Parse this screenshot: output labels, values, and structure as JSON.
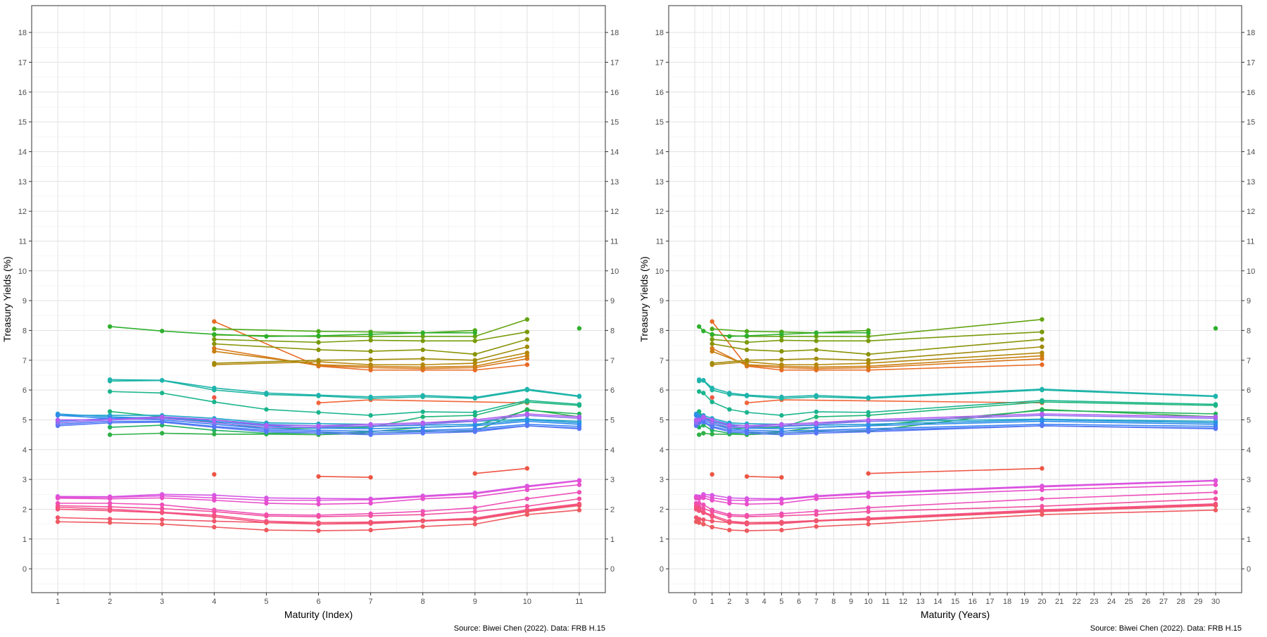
{
  "chart_data": [
    {
      "type": "line",
      "title": "",
      "xlabel": "Maturity (Index)",
      "ylabel": "Treasury Yields (%)",
      "caption": "Source: Biwei Chen (2022). Data: FRB H.15",
      "xlim": [
        0.5,
        11.5
      ],
      "ylim": [
        -0.8,
        18.9
      ],
      "x_ticks": [
        1,
        2,
        3,
        4,
        5,
        6,
        7,
        8,
        9,
        10,
        11
      ],
      "y_ticks": [
        0,
        1,
        2,
        3,
        4,
        5,
        6,
        7,
        8,
        9,
        10,
        11,
        12,
        13,
        14,
        15,
        16,
        17,
        18
      ],
      "grid": true,
      "legend": "none",
      "series": [
        {
          "color": "#EE5544",
          "x": [
            4
          ],
          "y": [
            5.75
          ]
        },
        {
          "color": "#F1663A",
          "x": [
            6,
            7,
            10
          ],
          "y": [
            5.57,
            5.67,
            5.57
          ]
        },
        {
          "color": "#EE5544",
          "x": [
            4
          ],
          "y": [
            3.17
          ]
        },
        {
          "color": "#EE5544",
          "x": [
            6,
            7
          ],
          "y": [
            3.1,
            3.07
          ]
        },
        {
          "color": "#EE5544",
          "x": [
            9,
            10
          ],
          "y": [
            3.2,
            3.37
          ]
        },
        {
          "color": "#E86A24",
          "x": [
            4,
            6,
            7,
            8,
            9,
            10
          ],
          "y": [
            8.3,
            6.8,
            6.67,
            6.67,
            6.67,
            6.85
          ]
        },
        {
          "color": "#D9771A",
          "x": [
            4,
            6,
            7,
            8,
            9,
            10
          ],
          "y": [
            7.4,
            6.82,
            6.75,
            6.72,
            6.75,
            7.05
          ]
        },
        {
          "color": "#C97F10",
          "x": [
            4,
            6,
            7,
            8,
            9,
            10
          ],
          "y": [
            7.3,
            6.85,
            6.8,
            6.77,
            6.8,
            7.15
          ]
        },
        {
          "color": "#B5870A",
          "x": [
            4,
            6,
            7,
            8,
            9,
            10
          ],
          "y": [
            6.85,
            6.95,
            6.85,
            6.85,
            6.9,
            7.25
          ]
        },
        {
          "color": "#A08B08",
          "x": [
            4,
            6,
            7,
            8,
            9,
            10
          ],
          "y": [
            6.9,
            7.0,
            7.02,
            7.05,
            7.0,
            7.45
          ]
        },
        {
          "color": "#8A9408",
          "x": [
            4,
            6,
            7,
            8,
            9,
            10
          ],
          "y": [
            7.55,
            7.35,
            7.3,
            7.35,
            7.2,
            7.7
          ]
        },
        {
          "color": "#7A9A0A",
          "x": [
            4,
            6,
            7,
            8,
            9,
            10
          ],
          "y": [
            7.7,
            7.6,
            7.67,
            7.65,
            7.65,
            7.95
          ]
        },
        {
          "color": "#65A312",
          "x": [
            4,
            6,
            7,
            8,
            9,
            10
          ],
          "y": [
            7.85,
            7.8,
            7.8,
            7.8,
            7.8,
            8.37
          ]
        },
        {
          "color": "#4BAA18",
          "x": [
            4,
            6,
            7,
            8,
            9
          ],
          "y": [
            8.05,
            7.97,
            7.95,
            7.92,
            8.0
          ]
        },
        {
          "color": "#2EB02C",
          "x": [
            2,
            3,
            4,
            5,
            6,
            7,
            8,
            9
          ],
          "y": [
            8.13,
            7.98,
            7.87,
            7.8,
            7.82,
            7.87,
            7.92,
            7.92
          ]
        },
        {
          "color": "#2EB02C",
          "x": [
            11
          ],
          "y": [
            8.07
          ]
        },
        {
          "color": "#2EB146",
          "x": [
            2,
            3,
            4,
            5,
            6,
            7,
            8,
            9,
            10,
            11
          ],
          "y": [
            4.5,
            4.55,
            4.52,
            4.52,
            4.5,
            4.55,
            4.62,
            4.62,
            5.35,
            5.1
          ]
        },
        {
          "color": "#22B25E",
          "x": [
            2,
            3,
            4,
            5,
            6,
            7,
            8,
            9,
            10,
            11
          ],
          "y": [
            4.75,
            4.82,
            4.65,
            4.55,
            4.55,
            4.6,
            4.75,
            4.8,
            5.32,
            5.2
          ]
        },
        {
          "color": "#1DB678",
          "x": [
            2,
            3,
            4,
            5,
            6,
            7,
            8,
            9,
            10,
            11
          ],
          "y": [
            5.28,
            5.1,
            4.92,
            4.7,
            4.72,
            4.75,
            5.1,
            5.15,
            5.6,
            5.48
          ]
        },
        {
          "color": "#1AB58D",
          "x": [
            2,
            3,
            4,
            5,
            6,
            7,
            8,
            9,
            10,
            11
          ],
          "y": [
            5.95,
            5.9,
            5.6,
            5.35,
            5.25,
            5.15,
            5.27,
            5.25,
            5.65,
            5.52
          ]
        },
        {
          "color": "#1CB6A0",
          "x": [
            2,
            3,
            4,
            5,
            6,
            7,
            8,
            9,
            10,
            11
          ],
          "y": [
            6.3,
            6.32,
            6.0,
            5.85,
            5.8,
            5.72,
            5.77,
            5.72,
            6.0,
            5.78
          ]
        },
        {
          "color": "#1FB3AE",
          "x": [
            2,
            3,
            4,
            5,
            6,
            7,
            8,
            9,
            10,
            11
          ],
          "y": [
            6.35,
            6.33,
            6.07,
            5.9,
            5.83,
            5.77,
            5.82,
            5.75,
            6.03,
            5.8
          ]
        },
        {
          "color": "#21A8C8",
          "x": [
            1,
            2,
            3,
            4,
            5,
            6,
            7,
            8,
            9,
            10,
            11
          ],
          "y": [
            5.15,
            5.15,
            5.15,
            5.05,
            4.9,
            4.87,
            4.85,
            4.9,
            4.95,
            5.02,
            4.95
          ]
        },
        {
          "color": "#269ADB",
          "x": [
            1,
            2,
            3,
            4,
            5,
            6,
            7,
            8,
            9,
            10,
            11
          ],
          "y": [
            5.2,
            5.1,
            5.05,
            5.0,
            4.85,
            4.8,
            4.78,
            4.82,
            4.85,
            5.0,
            4.9
          ]
        },
        {
          "color": "#2E8CEB",
          "x": [
            1,
            2,
            3,
            4,
            5,
            6,
            7,
            8,
            9,
            10,
            11
          ],
          "y": [
            5.15,
            5.05,
            5.1,
            4.95,
            4.8,
            4.72,
            4.7,
            4.75,
            4.8,
            4.95,
            4.85
          ]
        },
        {
          "color": "#3B82F3",
          "x": [
            1,
            2,
            3,
            4,
            5,
            6,
            7,
            8,
            9,
            10,
            11
          ],
          "y": [
            4.95,
            5.05,
            5.0,
            4.85,
            4.7,
            4.65,
            4.62,
            4.65,
            4.7,
            4.85,
            4.78
          ]
        },
        {
          "color": "#4A7AF6",
          "x": [
            1,
            2,
            3,
            4,
            5,
            6,
            7,
            8,
            9,
            10,
            11
          ],
          "y": [
            4.85,
            4.95,
            4.95,
            4.78,
            4.65,
            4.6,
            4.55,
            4.6,
            4.65,
            4.8,
            4.72
          ]
        },
        {
          "color": "#5677F5",
          "x": [
            1,
            2,
            3,
            4,
            5,
            6,
            7,
            8,
            9,
            10,
            11
          ],
          "y": [
            4.8,
            4.9,
            4.92,
            4.75,
            4.6,
            4.55,
            4.5,
            4.55,
            4.6,
            4.8,
            4.7
          ]
        },
        {
          "color": "#8F6FF0",
          "x": [
            1,
            2,
            3,
            4,
            5,
            6,
            7,
            8,
            9,
            10,
            11
          ],
          "y": [
            4.9,
            5.0,
            5.05,
            4.9,
            4.75,
            4.75,
            4.8,
            4.85,
            4.95,
            5.15,
            5.05
          ]
        },
        {
          "color": "#B45EF0",
          "x": [
            1,
            2,
            3,
            4,
            5,
            6,
            7,
            8,
            9,
            10,
            11
          ],
          "y": [
            5.0,
            5.0,
            5.1,
            5.0,
            4.82,
            4.8,
            4.85,
            4.9,
            5.0,
            5.2,
            5.1
          ]
        },
        {
          "color": "#D557E6",
          "x": [
            1,
            2,
            3,
            4,
            5,
            6,
            7,
            8,
            9,
            10,
            11
          ],
          "y": [
            2.43,
            2.42,
            2.5,
            2.47,
            2.38,
            2.36,
            2.35,
            2.45,
            2.55,
            2.78,
            2.97
          ]
        },
        {
          "color": "#E052DA",
          "x": [
            1,
            2,
            3,
            4,
            5,
            6,
            7,
            8,
            9,
            10,
            11
          ],
          "y": [
            2.4,
            2.4,
            2.45,
            2.38,
            2.3,
            2.3,
            2.32,
            2.42,
            2.52,
            2.75,
            2.95
          ]
        },
        {
          "color": "#E84FCB",
          "x": [
            1,
            2,
            3,
            4,
            5,
            6,
            7,
            8,
            9,
            10,
            11
          ],
          "y": [
            2.37,
            2.35,
            2.38,
            2.3,
            2.2,
            2.17,
            2.2,
            2.35,
            2.42,
            2.65,
            2.82
          ]
        },
        {
          "color": "#EE4FB8",
          "x": [
            1,
            2,
            3,
            4,
            5,
            6,
            7,
            8,
            9,
            10,
            11
          ],
          "y": [
            2.2,
            2.2,
            2.15,
            1.98,
            1.82,
            1.8,
            1.85,
            1.93,
            2.05,
            2.35,
            2.57
          ]
        },
        {
          "color": "#F2509F",
          "x": [
            1,
            2,
            3,
            4,
            5,
            6,
            7,
            8,
            9,
            10,
            11
          ],
          "y": [
            2.12,
            2.08,
            2.02,
            1.92,
            1.77,
            1.75,
            1.78,
            1.82,
            1.92,
            2.1,
            2.35
          ]
        },
        {
          "color": "#F5528C",
          "x": [
            1,
            2,
            3,
            4,
            5,
            6,
            7,
            8,
            9,
            10,
            11
          ],
          "y": [
            2.07,
            2.0,
            1.9,
            1.8,
            1.6,
            1.55,
            1.57,
            1.62,
            1.7,
            1.98,
            2.18
          ]
        },
        {
          "color": "#F35279",
          "x": [
            1,
            2,
            3,
            4,
            5,
            6,
            7,
            8,
            9,
            10,
            11
          ],
          "y": [
            2.0,
            1.95,
            1.88,
            1.75,
            1.55,
            1.5,
            1.52,
            1.6,
            1.68,
            1.95,
            2.15
          ]
        },
        {
          "color": "#F0566C",
          "x": [
            1,
            2,
            3,
            4,
            5,
            6,
            7,
            8,
            9,
            10,
            11
          ],
          "y": [
            1.72,
            1.67,
            1.65,
            1.6,
            1.55,
            1.55,
            1.55,
            1.62,
            1.65,
            1.92,
            2.12
          ]
        },
        {
          "color": "#EE5A60",
          "x": [
            1,
            2,
            3,
            4,
            5,
            6,
            7,
            8,
            9,
            10,
            11
          ],
          "y": [
            1.58,
            1.55,
            1.5,
            1.4,
            1.3,
            1.28,
            1.3,
            1.42,
            1.5,
            1.82,
            1.97
          ]
        }
      ]
    },
    {
      "type": "line",
      "title": "",
      "xlabel": "Maturity (Years)",
      "ylabel": "Treasury Yields (%)",
      "caption": "Source: Biwei Chen (2022). Data: FRB H.15",
      "xlim": [
        -1.5,
        31.5
      ],
      "ylim": [
        -0.8,
        18.9
      ],
      "x_ticks": [
        0,
        1,
        2,
        3,
        4,
        5,
        6,
        7,
        8,
        9,
        10,
        11,
        12,
        13,
        14,
        15,
        16,
        17,
        18,
        19,
        20,
        21,
        22,
        23,
        24,
        25,
        26,
        27,
        28,
        29,
        30
      ],
      "y_ticks": [
        0,
        1,
        2,
        3,
        4,
        5,
        6,
        7,
        8,
        9,
        10,
        11,
        12,
        13,
        14,
        15,
        16,
        17,
        18
      ],
      "grid": true,
      "legend": "none",
      "maturity_years_by_index": [
        0.083,
        0.25,
        0.5,
        1,
        2,
        3,
        5,
        7,
        10,
        20,
        30
      ]
    }
  ]
}
